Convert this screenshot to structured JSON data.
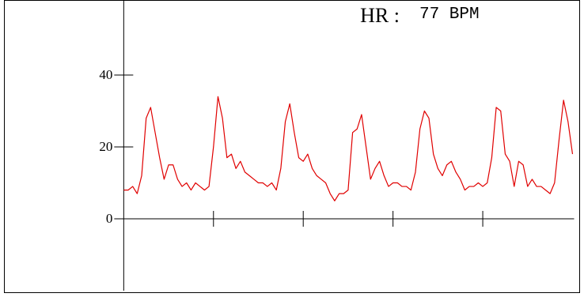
{
  "chart_data": {
    "type": "line",
    "title": "HR :",
    "subtitle": "77 BPM",
    "x": [
      0,
      0.05,
      0.1,
      0.15,
      0.2,
      0.25,
      0.3,
      0.35,
      0.4,
      0.45,
      0.5,
      0.55,
      0.6,
      0.65,
      0.7,
      0.75,
      0.8,
      0.85,
      0.9,
      0.95,
      1,
      1.05,
      1.1,
      1.15,
      1.2,
      1.25,
      1.3,
      1.35,
      1.4,
      1.45,
      1.5,
      1.55,
      1.6,
      1.65,
      1.7,
      1.75,
      1.8,
      1.85,
      1.9,
      1.95,
      2,
      2.05,
      2.1,
      2.15,
      2.2,
      2.25,
      2.3,
      2.35,
      2.4,
      2.45,
      2.5,
      2.55,
      2.6,
      2.65,
      2.7,
      2.75,
      2.8,
      2.85,
      2.9,
      2.95,
      3,
      3.05,
      3.1,
      3.15,
      3.2,
      3.25,
      3.3,
      3.35,
      3.4,
      3.45,
      3.5,
      3.55,
      3.6,
      3.65,
      3.7,
      3.75,
      3.8,
      3.85,
      3.9,
      3.95,
      4,
      4.05,
      4.1,
      4.15,
      4.2,
      4.25,
      4.3,
      4.35,
      4.4,
      4.45,
      4.5,
      4.55,
      4.6,
      4.65,
      4.7,
      4.75,
      4.8,
      4.85,
      4.9,
      4.95,
      5
    ],
    "values": [
      8,
      8,
      9,
      7,
      12,
      28,
      31,
      24,
      17,
      11,
      15,
      15,
      11,
      9,
      10,
      8,
      10,
      9,
      8,
      9,
      20,
      34,
      28,
      17,
      18,
      14,
      16,
      13,
      12,
      11,
      10,
      10,
      9,
      10,
      8,
      14,
      27,
      32,
      24,
      17,
      16,
      18,
      14,
      12,
      11,
      10,
      7,
      5,
      7,
      7,
      8,
      24,
      25,
      29,
      20,
      11,
      14,
      16,
      12,
      9,
      10,
      10,
      9,
      9,
      8,
      13,
      25,
      30,
      28,
      18,
      14,
      12,
      15,
      16,
      13,
      11,
      8,
      9,
      9,
      10,
      9,
      10,
      17,
      31,
      30,
      18,
      16,
      9,
      16,
      15,
      9,
      11,
      9,
      9,
      8,
      7,
      10,
      22,
      33,
      27,
      18
    ],
    "color": "#e00000",
    "xlim": [
      -0.1,
      5.0
    ],
    "xticks": [
      1,
      2,
      3,
      4
    ],
    "ylim": [
      -20,
      60
    ],
    "yticks": [
      0,
      20,
      40
    ]
  }
}
